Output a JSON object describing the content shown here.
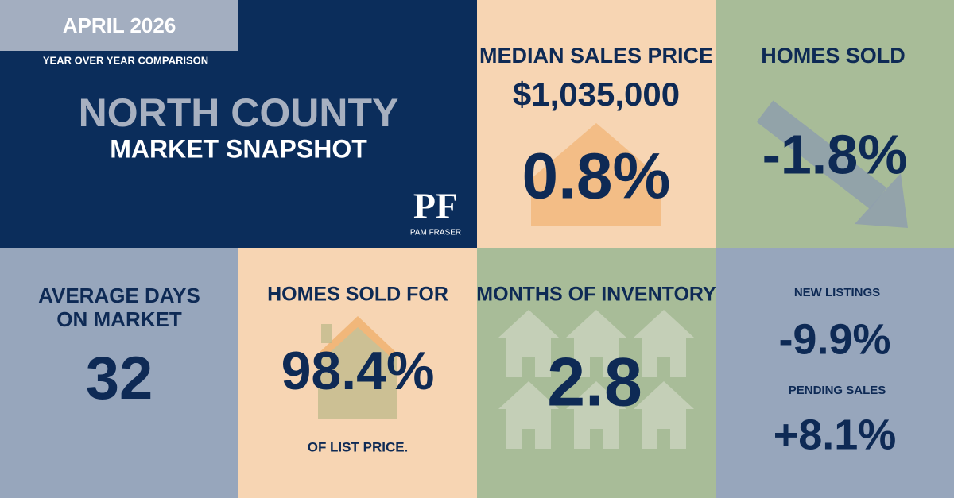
{
  "header": {
    "month": "APRIL 2026",
    "subtitle": "YEAR OVER YEAR COMPARISON",
    "region": "NORTH COUNTY",
    "title": "MARKET SNAPSHOT"
  },
  "logo": {
    "monogram": "PF",
    "name": "PAM FRASER"
  },
  "median_sales_price": {
    "title": "MEDIAN SALES PRICE",
    "price": "$1,035,000",
    "change": "0.8%"
  },
  "homes_sold": {
    "title": "HOMES SOLD",
    "change": "-1.8%"
  },
  "average_days_on_market": {
    "title_lines": [
      "AVERAGE DAYS",
      "ON MARKET"
    ],
    "value": "32"
  },
  "homes_sold_for": {
    "title": "HOMES SOLD FOR",
    "value": "98.4%",
    "note": "OF LIST PRICE."
  },
  "months_of_inventory": {
    "title": "MONTHS OF INVENTORY",
    "value": "2.8"
  },
  "new_listings": {
    "title": "NEW LISTINGS",
    "change": "-9.9%"
  },
  "pending_sales": {
    "title": "PENDING SALES",
    "change": "+8.1%"
  }
}
